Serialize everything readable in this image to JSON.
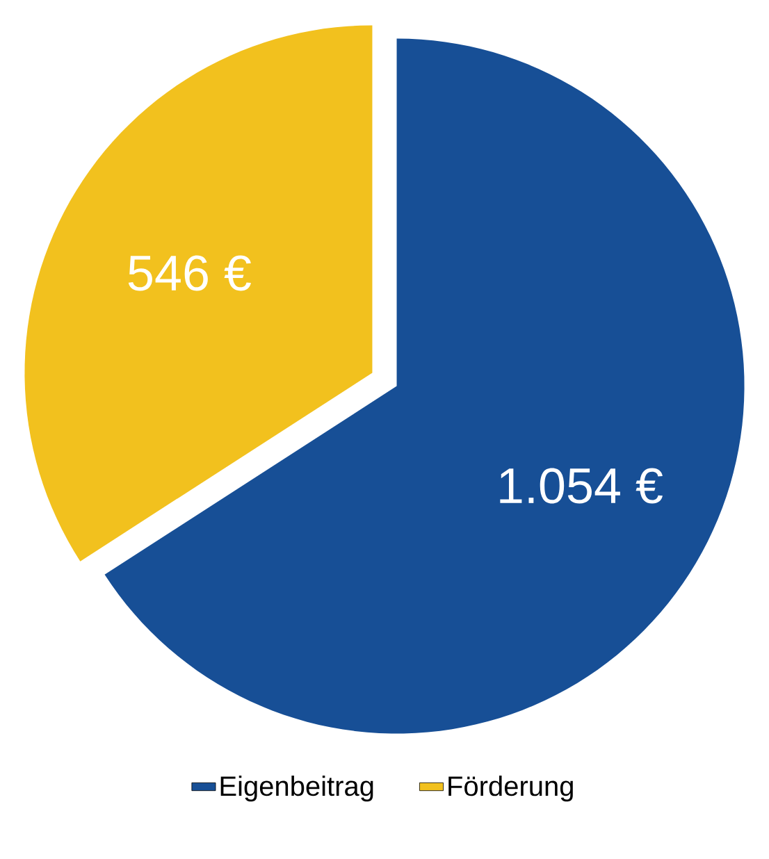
{
  "chart_data": {
    "type": "pie",
    "categories": [
      "Eigenbeitrag",
      "Förderung"
    ],
    "values": [
      1054,
      546
    ],
    "colors": [
      "#174f96",
      "#f2c11e"
    ],
    "value_labels": [
      "1.054 €",
      "546 €"
    ],
    "legend": "bottom"
  }
}
